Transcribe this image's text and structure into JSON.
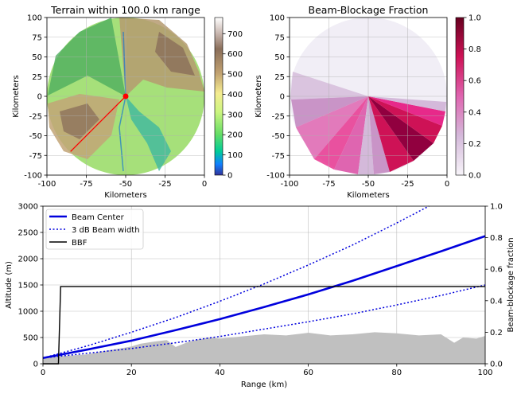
{
  "colors": {
    "beam_center": "#0000dd",
    "beam_width": "#0000dd",
    "bbf": "#000000",
    "terrain_fill": "#c0c0c0",
    "radar_line": "#ff0000",
    "grid": "#b0b0b0"
  },
  "chart_data": [
    {
      "type": "heatmap",
      "title": "Terrain within 100.0 km range",
      "xlabel": "Kilometers",
      "ylabel": "Kilometers",
      "xlim": [
        -100,
        0
      ],
      "ylim": [
        -100,
        100
      ],
      "x_ticks": [
        "-100",
        "-75",
        "-50",
        "-25",
        "0"
      ],
      "y_ticks": [
        "100",
        "75",
        "50",
        "25",
        "0",
        "-25",
        "-50",
        "-75",
        "-100"
      ],
      "grid": true,
      "colormap": "terrain",
      "colorbar": {
        "min": 0,
        "max": 780,
        "ticks": [
          "700",
          "600",
          "500",
          "400",
          "300",
          "200",
          "100",
          "0"
        ]
      },
      "radar_position": [
        -50,
        0
      ],
      "beam_line": {
        "from": [
          -50,
          0
        ],
        "to": [
          -85,
          -70
        ]
      }
    },
    {
      "type": "heatmap",
      "title": "Beam-Blockage Fraction",
      "xlabel": "Kilometers",
      "ylabel": "Kilometers",
      "xlim": [
        -100,
        0
      ],
      "ylim": [
        -100,
        100
      ],
      "x_ticks": [
        "-100",
        "-75",
        "-50",
        "-25",
        "0"
      ],
      "y_ticks": [
        "100",
        "75",
        "50",
        "25",
        "0",
        "-25",
        "-50",
        "-75",
        "-100"
      ],
      "grid": true,
      "colormap": "PuRd",
      "colorbar": {
        "min": 0,
        "max": 1,
        "ticks": [
          "1.0",
          "0.8",
          "0.6",
          "0.4",
          "0.2",
          "0.0"
        ]
      }
    },
    {
      "type": "line",
      "xlabel": "Range (km)",
      "ylabel": "Altitude (m)",
      "y2label": "Beam-blockage fraction",
      "xlim": [
        0,
        100
      ],
      "ylim": [
        0,
        3000
      ],
      "y2lim": [
        0,
        1
      ],
      "x_ticks": [
        "0",
        "20",
        "40",
        "60",
        "80",
        "100"
      ],
      "y_ticks": [
        "0",
        "500",
        "1000",
        "1500",
        "2000",
        "2500",
        "3000"
      ],
      "y2_ticks": [
        "0.0",
        "0.2",
        "0.4",
        "0.6",
        "0.8",
        "1.0"
      ],
      "grid": true,
      "legend_position": "top-left",
      "legend": [
        "Beam Center",
        "3 dB Beam width",
        "BBF"
      ],
      "x": [
        0,
        10,
        20,
        30,
        40,
        50,
        60,
        70,
        80,
        90,
        100
      ],
      "series": [
        {
          "name": "Beam Center",
          "values": [
            110,
            270,
            440,
            640,
            850,
            1080,
            1320,
            1580,
            1860,
            2140,
            2430
          ]
        },
        {
          "name": "3 dB Beam width",
          "values": [
            110,
            340,
            600,
            880,
            1190,
            1520,
            1880,
            2260,
            2680,
            3120,
            3600
          ]
        },
        {
          "name": "3 dB Beam width (lower)",
          "values": [
            110,
            200,
            290,
            400,
            520,
            660,
            800,
            950,
            1120,
            1300,
            1500
          ]
        },
        {
          "name": "BBF",
          "x": [
            0,
            3.5,
            4,
            100
          ],
          "values": [
            0,
            0,
            0.49,
            0.49
          ]
        },
        {
          "name": "terrain",
          "x": [
            0,
            5,
            10,
            15,
            18,
            20,
            22,
            25,
            28,
            30,
            33,
            35,
            38,
            40,
            45,
            50,
            55,
            60,
            65,
            70,
            75,
            80,
            85,
            90,
            93,
            95,
            98,
            100
          ],
          "values": [
            120,
            150,
            180,
            260,
            300,
            330,
            380,
            420,
            450,
            320,
            420,
            460,
            500,
            480,
            520,
            560,
            540,
            590,
            540,
            560,
            600,
            580,
            540,
            560,
            400,
            500,
            480,
            530
          ]
        }
      ]
    }
  ]
}
